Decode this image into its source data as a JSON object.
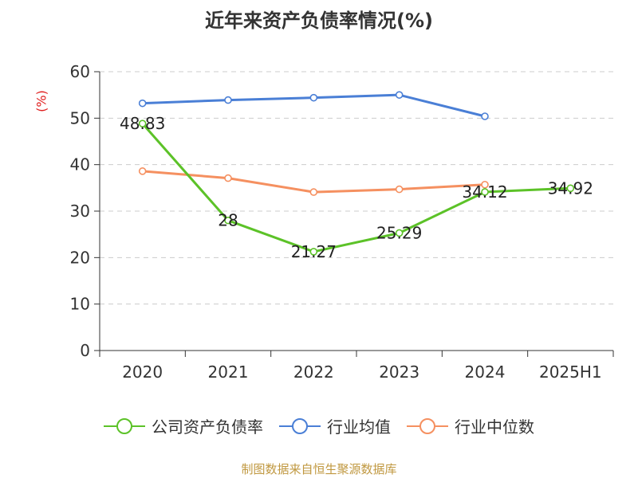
{
  "chart_data": {
    "type": "line",
    "title": "近年来资产负债率情况(%)",
    "ylabel": "(%)",
    "categories": [
      "2020",
      "2021",
      "2022",
      "2023",
      "2024",
      "2025H1"
    ],
    "ylim": [
      0,
      60
    ],
    "yticks": [
      0,
      10,
      20,
      30,
      40,
      50,
      60
    ],
    "grid": true,
    "legend_position": "bottom",
    "series": [
      {
        "name": "公司资产负债率",
        "color": "#5cc228",
        "values": [
          48.83,
          28,
          21.27,
          25.29,
          34.12,
          34.92
        ],
        "labels": [
          "48.83",
          "28",
          "21.27",
          "25.29",
          "34.12",
          "34.92"
        ]
      },
      {
        "name": "行业均值",
        "color": "#4a7fd6",
        "values": [
          53.2,
          53.9,
          54.4,
          55.0,
          50.4,
          null
        ]
      },
      {
        "name": "行业中位数",
        "color": "#f59060",
        "values": [
          38.6,
          37.1,
          34.1,
          34.7,
          35.7,
          null
        ]
      }
    ]
  },
  "source": "制图数据来自恒生聚源数据库"
}
